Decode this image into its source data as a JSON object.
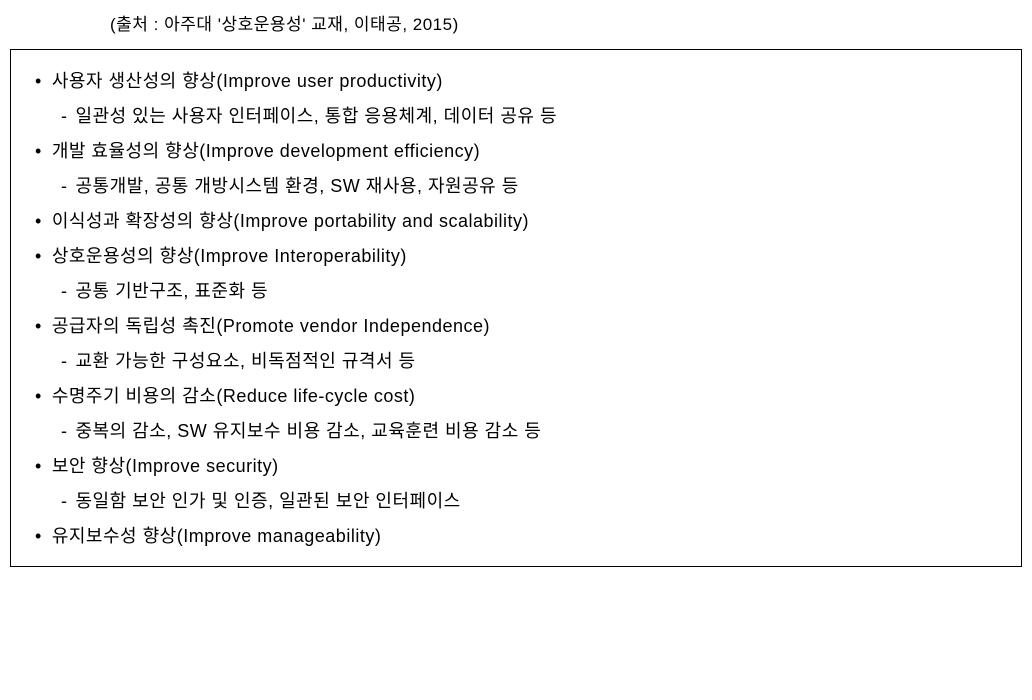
{
  "citation": "(출처 : 아주대 '상호운용성' 교재, 이태공, 2015)",
  "items": [
    {
      "main": "사용자 생산성의 향상(Improve user productivity)",
      "sub": "일관성 있는 사용자 인터페이스, 통합 응용체계, 데이터 공유 등"
    },
    {
      "main": "개발 효율성의 향상(Improve development efficiency)",
      "sub": "공통개발, 공통 개방시스템 환경, SW 재사용, 자원공유 등"
    },
    {
      "main": "이식성과 확장성의 향상(Improve portability and scalability)",
      "sub": null
    },
    {
      "main": "상호운용성의 향상(Improve Interoperability)",
      "sub": "공통 기반구조, 표준화 등"
    },
    {
      "main": "공급자의 독립성 촉진(Promote vendor Independence)",
      "sub": "교환 가능한 구성요소, 비독점적인 규격서 등"
    },
    {
      "main": "수명주기 비용의 감소(Reduce life-cycle cost)",
      "sub": "중복의 감소, SW 유지보수 비용 감소, 교육훈련 비용 감소 등"
    },
    {
      "main": "보안 향상(Improve security)",
      "sub": "동일함 보안 인가 및 인증, 일관된 보안 인터페이스"
    },
    {
      "main": "유지보수성 향상(Improve manageability)",
      "sub": null
    }
  ],
  "colors": {
    "text": "#000000",
    "background": "#ffffff",
    "border": "#000000"
  },
  "fontsize": {
    "citation": 17,
    "body": 18
  }
}
